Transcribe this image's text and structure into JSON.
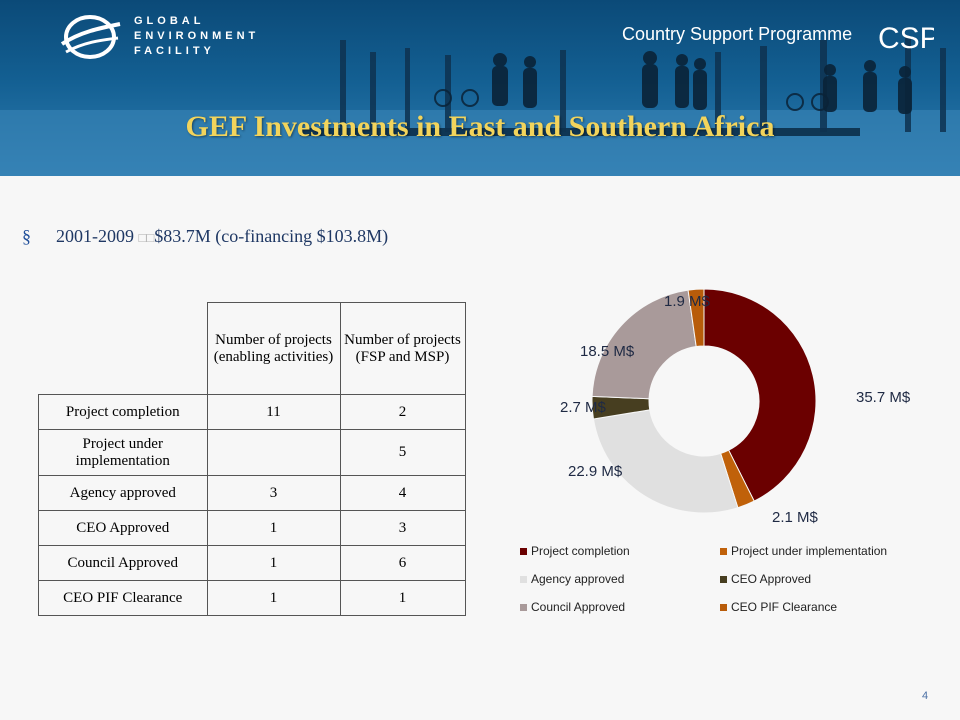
{
  "header": {
    "org_line1": "GLOBAL",
    "org_line2": "ENVIRONMENT",
    "org_line3": "FACILITY",
    "programme": "Country Support Programme",
    "programme_logo_text": "CSP"
  },
  "slide": {
    "title": "GEF Investments in East and Southern Africa",
    "bullet_mark": "§",
    "bullet_years": "2001-2009",
    "bullet_sep": "□□",
    "bullet_amount": "$83.7M (co-financing $103.8M)",
    "page_number": "4"
  },
  "table": {
    "headers": [
      "Number of projects (enabling activities)",
      "Number of projects (FSP and MSP)"
    ],
    "rows": [
      {
        "label": "Project completion",
        "ea": "11",
        "fsp": "2"
      },
      {
        "label": "Project under implementation",
        "ea": "",
        "fsp": "5"
      },
      {
        "label": "Agency approved",
        "ea": "3",
        "fsp": "4"
      },
      {
        "label": "CEO Approved",
        "ea": "1",
        "fsp": "3"
      },
      {
        "label": "Council Approved",
        "ea": "1",
        "fsp": "6"
      },
      {
        "label": "CEO PIF Clearance",
        "ea": "1",
        "fsp": "1"
      }
    ]
  },
  "chart_data": {
    "type": "pie",
    "donut": true,
    "categories": [
      "Project completion",
      "Project under implementation",
      "Agency approved",
      "CEO Approved",
      "Council Approved",
      "CEO PIF Clearance"
    ],
    "values": [
      35.7,
      2.1,
      22.9,
      2.7,
      18.5,
      1.9
    ],
    "data_labels": [
      "35.7 M$",
      "2.1 M$",
      "22.9 M$",
      "2.7 M$",
      "18.5 M$",
      "1.9 M$"
    ],
    "colors": [
      "#6b0000",
      "#c0610a",
      "#e0e0e0",
      "#473e20",
      "#a99a9a",
      "#b85c0a"
    ],
    "legend_position": "bottom"
  }
}
